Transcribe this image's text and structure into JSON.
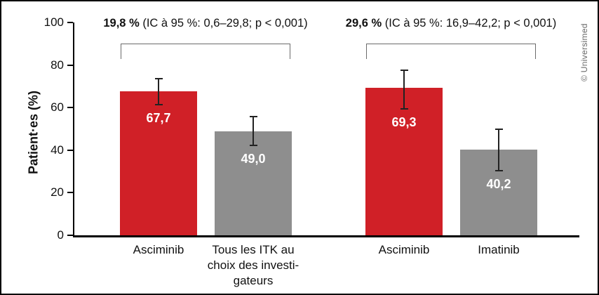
{
  "chart_data": {
    "type": "bar",
    "title": "",
    "ylabel": "Patient·es (%)",
    "credit": "© Universimed",
    "ylim": [
      0,
      100
    ],
    "yticks": [
      0,
      20,
      40,
      60,
      80,
      100
    ],
    "grid": false,
    "legend": "none",
    "colors": {
      "asciminib_red": "#d02027",
      "comparator_gray": "#8e8e8e",
      "axis_black": "#000000",
      "bracket_gray": "#6b6b6b",
      "error_bar": "#222222",
      "value_label": "#ffffff",
      "credit_gray": "#6a6a6a"
    },
    "groups": [
      {
        "annotation": {
          "bold": "19,8 %",
          "rest": " (IC à 95 %: 0,6–29,8; p < 0,001)"
        },
        "bars": [
          {
            "label": "Asciminib",
            "value": 67.7,
            "display": "67,7",
            "color_key": "asciminib_red",
            "ci_low": 61.0,
            "ci_high": 74.0
          },
          {
            "label": "Tous les ITK au\nchoix des investi-\ngateurs",
            "value": 49.0,
            "display": "49,0",
            "color_key": "comparator_gray",
            "ci_low": 42.0,
            "ci_high": 56.0
          }
        ]
      },
      {
        "annotation": {
          "bold": "29,6 %",
          "rest": " (IC à 95 %: 16,9–42,2; p < 0,001)"
        },
        "bars": [
          {
            "label": "Asciminib",
            "value": 69.3,
            "display": "69,3",
            "color_key": "asciminib_red",
            "ci_low": 59.0,
            "ci_high": 78.0
          },
          {
            "label": "Imatinib",
            "value": 40.2,
            "display": "40,2",
            "color_key": "comparator_gray",
            "ci_low": 30.0,
            "ci_high": 50.3
          }
        ]
      }
    ]
  }
}
